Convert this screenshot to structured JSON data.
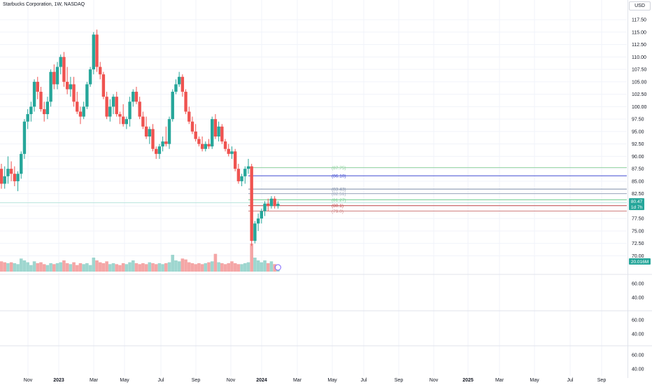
{
  "header": {
    "title": "Starbucks Corporation, 1W, NASDAQ",
    "currency": "USD"
  },
  "colors": {
    "up": "#26a69a",
    "down": "#ef5350",
    "vol_up": "#9ed6cf",
    "vol_down": "#f4a6a6",
    "grid": "#f0f3fa",
    "axis_text": "#131722"
  },
  "chart_data": [
    {
      "type": "candlestick",
      "title": "Starbucks Corporation, 1W, NASDAQ",
      "x_axis_labels": [
        "Nov",
        "2023",
        "Mar",
        "May",
        "Jul",
        "Sep",
        "Nov",
        "2024",
        "Mar",
        "May",
        "Jul",
        "Sep",
        "Nov",
        "2025",
        "Mar",
        "May",
        "Jul",
        "Sep"
      ],
      "y_axis_labels": [
        "117.50",
        "115.00",
        "112.50",
        "110.00",
        "107.50",
        "105.00",
        "102.50",
        "100.00",
        "97.50",
        "95.00",
        "92.50",
        "90.00",
        "87.50",
        "85.00",
        "82.50",
        "80.00",
        "77.50",
        "75.00",
        "72.50",
        "70.00"
      ],
      "ylim": [
        69.5,
        118.5
      ],
      "xlim_week_index": [
        0,
        184
      ],
      "last_price_label": "80.47",
      "countdown_label": "1d 7h",
      "volume_label": "20.016M",
      "series": [
        {
          "name": "price",
          "values": [
            {
              "o": 87.5,
              "h": 88.5,
              "l": 83.5,
              "c": 84.5
            },
            {
              "o": 84.5,
              "h": 88,
              "l": 83.5,
              "c": 86
            },
            {
              "o": 86,
              "h": 90,
              "l": 84.5,
              "c": 87.5
            },
            {
              "o": 87.5,
              "h": 89,
              "l": 85,
              "c": 86.5
            },
            {
              "o": 86.5,
              "h": 88,
              "l": 84,
              "c": 85
            },
            {
              "o": 85,
              "h": 87,
              "l": 83,
              "c": 86.5
            },
            {
              "o": 86.5,
              "h": 91,
              "l": 85.5,
              "c": 90.5
            },
            {
              "o": 90.5,
              "h": 97.5,
              "l": 89.5,
              "c": 97
            },
            {
              "o": 97,
              "h": 99.5,
              "l": 95.5,
              "c": 98.5
            },
            {
              "o": 98.5,
              "h": 101,
              "l": 97,
              "c": 100
            },
            {
              "o": 100,
              "h": 105.5,
              "l": 99,
              "c": 105
            },
            {
              "o": 105,
              "h": 106,
              "l": 101.5,
              "c": 103
            },
            {
              "o": 103,
              "h": 104,
              "l": 99,
              "c": 99.5
            },
            {
              "o": 99.5,
              "h": 101,
              "l": 97,
              "c": 98.5
            },
            {
              "o": 98.5,
              "h": 102,
              "l": 97.5,
              "c": 101
            },
            {
              "o": 101,
              "h": 107.5,
              "l": 100,
              "c": 107
            },
            {
              "o": 107,
              "h": 108.5,
              "l": 103.5,
              "c": 104.5
            },
            {
              "o": 104.5,
              "h": 109,
              "l": 103.5,
              "c": 108
            },
            {
              "o": 108,
              "h": 110.5,
              "l": 106.5,
              "c": 110
            },
            {
              "o": 110,
              "h": 111,
              "l": 104,
              "c": 105
            },
            {
              "o": 105,
              "h": 108,
              "l": 102.5,
              "c": 103.5
            },
            {
              "o": 103.5,
              "h": 106,
              "l": 102,
              "c": 104.5
            },
            {
              "o": 104.5,
              "h": 106,
              "l": 100,
              "c": 101
            },
            {
              "o": 101,
              "h": 103,
              "l": 98.5,
              "c": 99
            },
            {
              "o": 99,
              "h": 100,
              "l": 96.5,
              "c": 98
            },
            {
              "o": 98,
              "h": 101,
              "l": 97.5,
              "c": 100
            },
            {
              "o": 100,
              "h": 105,
              "l": 99.5,
              "c": 104.5
            },
            {
              "o": 104.5,
              "h": 108,
              "l": 104,
              "c": 107.5
            },
            {
              "o": 107.5,
              "h": 115,
              "l": 106.5,
              "c": 114.5
            },
            {
              "o": 114.5,
              "h": 115.5,
              "l": 107,
              "c": 108
            },
            {
              "o": 108,
              "h": 109,
              "l": 105.5,
              "c": 106.5
            },
            {
              "o": 106.5,
              "h": 107,
              "l": 101.5,
              "c": 102
            },
            {
              "o": 102,
              "h": 103,
              "l": 97.5,
              "c": 98
            },
            {
              "o": 98,
              "h": 101.5,
              "l": 97,
              "c": 100
            },
            {
              "o": 100,
              "h": 102.5,
              "l": 98.5,
              "c": 102
            },
            {
              "o": 102,
              "h": 103,
              "l": 98,
              "c": 98.5
            },
            {
              "o": 98.5,
              "h": 99,
              "l": 96.5,
              "c": 98
            },
            {
              "o": 98,
              "h": 100.5,
              "l": 96,
              "c": 96.5
            },
            {
              "o": 96.5,
              "h": 98,
              "l": 95.5,
              "c": 97.5
            },
            {
              "o": 97.5,
              "h": 102,
              "l": 96,
              "c": 101
            },
            {
              "o": 101,
              "h": 103.5,
              "l": 100,
              "c": 103
            },
            {
              "o": 103,
              "h": 104,
              "l": 100.5,
              "c": 101
            },
            {
              "o": 101,
              "h": 102,
              "l": 97.5,
              "c": 98
            },
            {
              "o": 98,
              "h": 99,
              "l": 95.5,
              "c": 96
            },
            {
              "o": 96,
              "h": 98,
              "l": 93.5,
              "c": 94
            },
            {
              "o": 94,
              "h": 96,
              "l": 92.5,
              "c": 95.5
            },
            {
              "o": 95.5,
              "h": 96.5,
              "l": 91,
              "c": 91.5
            },
            {
              "o": 91.5,
              "h": 92,
              "l": 89.5,
              "c": 90.5
            },
            {
              "o": 90.5,
              "h": 92.5,
              "l": 89.5,
              "c": 92
            },
            {
              "o": 92,
              "h": 94,
              "l": 91,
              "c": 93
            },
            {
              "o": 93,
              "h": 96,
              "l": 92,
              "c": 92.5
            },
            {
              "o": 92.5,
              "h": 98,
              "l": 91.5,
              "c": 97.5
            },
            {
              "o": 97.5,
              "h": 103.5,
              "l": 97,
              "c": 103
            },
            {
              "o": 103,
              "h": 105.5,
              "l": 102.5,
              "c": 104.5
            },
            {
              "o": 104.5,
              "h": 107,
              "l": 104,
              "c": 106
            },
            {
              "o": 106,
              "h": 106.5,
              "l": 102,
              "c": 103
            },
            {
              "o": 103,
              "h": 103.5,
              "l": 98.5,
              "c": 99
            },
            {
              "o": 99,
              "h": 100,
              "l": 96.5,
              "c": 97
            },
            {
              "o": 97,
              "h": 98,
              "l": 94.5,
              "c": 95
            },
            {
              "o": 95,
              "h": 96.5,
              "l": 93,
              "c": 93.5
            },
            {
              "o": 93.5,
              "h": 94,
              "l": 92,
              "c": 92.5
            },
            {
              "o": 92.5,
              "h": 94,
              "l": 91,
              "c": 91.5
            },
            {
              "o": 91.5,
              "h": 93,
              "l": 91,
              "c": 92.5
            },
            {
              "o": 92.5,
              "h": 93.5,
              "l": 91.5,
              "c": 92
            },
            {
              "o": 92,
              "h": 98,
              "l": 91.5,
              "c": 97.5
            },
            {
              "o": 97.5,
              "h": 98.5,
              "l": 93.5,
              "c": 94
            },
            {
              "o": 94,
              "h": 97,
              "l": 93,
              "c": 96
            },
            {
              "o": 96,
              "h": 96.5,
              "l": 92.5,
              "c": 93
            },
            {
              "o": 93,
              "h": 93.5,
              "l": 91,
              "c": 91.5
            },
            {
              "o": 91.5,
              "h": 92.5,
              "l": 90,
              "c": 90.5
            },
            {
              "o": 90.5,
              "h": 92,
              "l": 89.5,
              "c": 91
            },
            {
              "o": 91,
              "h": 91.5,
              "l": 87,
              "c": 87.5
            },
            {
              "o": 87.5,
              "h": 88.5,
              "l": 84.5,
              "c": 85
            },
            {
              "o": 85,
              "h": 86.5,
              "l": 84,
              "c": 86
            },
            {
              "o": 86,
              "h": 88,
              "l": 84.5,
              "c": 87.5
            },
            {
              "o": 87.5,
              "h": 89.5,
              "l": 86.5,
              "c": 88
            },
            {
              "o": 88,
              "h": 88.5,
              "l": 72,
              "c": 73
            },
            {
              "o": 73,
              "h": 77,
              "l": 72.5,
              "c": 76.5
            },
            {
              "o": 76.5,
              "h": 78.5,
              "l": 75,
              "c": 77.5
            },
            {
              "o": 77.5,
              "h": 79.5,
              "l": 76.5,
              "c": 79
            },
            {
              "o": 79,
              "h": 81,
              "l": 78,
              "c": 80.5
            },
            {
              "o": 80.5,
              "h": 81.5,
              "l": 79,
              "c": 80
            },
            {
              "o": 80,
              "h": 82,
              "l": 79.5,
              "c": 81.5
            },
            {
              "o": 81.5,
              "h": 82,
              "l": 79.5,
              "c": 80
            },
            {
              "o": 80,
              "h": 81,
              "l": 79.5,
              "c": 80.47
            }
          ]
        }
      ],
      "volume_series": [
        {
          "v": 11,
          "up": false
        },
        {
          "v": 10,
          "up": false
        },
        {
          "v": 9,
          "up": true
        },
        {
          "v": 10,
          "up": false
        },
        {
          "v": 9,
          "up": true
        },
        {
          "v": 8,
          "up": true
        },
        {
          "v": 14,
          "up": true
        },
        {
          "v": 12,
          "up": true
        },
        {
          "v": 10,
          "up": true
        },
        {
          "v": 7,
          "up": true
        },
        {
          "v": 11,
          "up": true
        },
        {
          "v": 9,
          "up": false
        },
        {
          "v": 10,
          "up": false
        },
        {
          "v": 8,
          "up": false
        },
        {
          "v": 7,
          "up": true
        },
        {
          "v": 9,
          "up": true
        },
        {
          "v": 8,
          "up": false
        },
        {
          "v": 9,
          "up": true
        },
        {
          "v": 10,
          "up": true
        },
        {
          "v": 12,
          "up": false
        },
        {
          "v": 9,
          "up": false
        },
        {
          "v": 8,
          "up": true
        },
        {
          "v": 10,
          "up": false
        },
        {
          "v": 7,
          "up": false
        },
        {
          "v": 9,
          "up": false
        },
        {
          "v": 8,
          "up": true
        },
        {
          "v": 9,
          "up": true
        },
        {
          "v": 7,
          "up": true
        },
        {
          "v": 15,
          "up": true
        },
        {
          "v": 12,
          "up": false
        },
        {
          "v": 10,
          "up": false
        },
        {
          "v": 9,
          "up": false
        },
        {
          "v": 11,
          "up": false
        },
        {
          "v": 8,
          "up": true
        },
        {
          "v": 9,
          "up": true
        },
        {
          "v": 8,
          "up": false
        },
        {
          "v": 7,
          "up": false
        },
        {
          "v": 9,
          "up": false
        },
        {
          "v": 8,
          "up": true
        },
        {
          "v": 10,
          "up": true
        },
        {
          "v": 12,
          "up": true
        },
        {
          "v": 9,
          "up": false
        },
        {
          "v": 8,
          "up": false
        },
        {
          "v": 9,
          "up": false
        },
        {
          "v": 8,
          "up": false
        },
        {
          "v": 10,
          "up": true
        },
        {
          "v": 9,
          "up": false
        },
        {
          "v": 8,
          "up": false
        },
        {
          "v": 9,
          "up": true
        },
        {
          "v": 8,
          "up": true
        },
        {
          "v": 9,
          "up": false
        },
        {
          "v": 10,
          "up": true
        },
        {
          "v": 18,
          "up": true
        },
        {
          "v": 12,
          "up": true
        },
        {
          "v": 11,
          "up": true
        },
        {
          "v": 14,
          "up": false
        },
        {
          "v": 13,
          "up": false
        },
        {
          "v": 10,
          "up": false
        },
        {
          "v": 9,
          "up": false
        },
        {
          "v": 8,
          "up": false
        },
        {
          "v": 9,
          "up": false
        },
        {
          "v": 8,
          "up": false
        },
        {
          "v": 9,
          "up": true
        },
        {
          "v": 10,
          "up": false
        },
        {
          "v": 11,
          "up": true
        },
        {
          "v": 19,
          "up": false
        },
        {
          "v": 10,
          "up": true
        },
        {
          "v": 9,
          "up": false
        },
        {
          "v": 8,
          "up": false
        },
        {
          "v": 9,
          "up": false
        },
        {
          "v": 11,
          "up": false
        },
        {
          "v": 9,
          "up": false
        },
        {
          "v": 8,
          "up": false
        },
        {
          "v": 8,
          "up": true
        },
        {
          "v": 9,
          "up": true
        },
        {
          "v": 10,
          "up": true
        },
        {
          "v": 30,
          "up": false
        },
        {
          "v": 15,
          "up": true
        },
        {
          "v": 12,
          "up": true
        },
        {
          "v": 10,
          "up": true
        },
        {
          "v": 12,
          "up": true
        },
        {
          "v": 9,
          "up": false
        },
        {
          "v": 11,
          "up": true
        },
        {
          "v": 8,
          "up": false
        },
        {
          "v": 3,
          "up": true
        }
      ],
      "price_levels": [
        {
          "label": "(87.75)",
          "value": 87.75,
          "color": "#8fd19e"
        },
        {
          "label": "(86.10)",
          "value": 86.1,
          "color": "#3f4ad1"
        },
        {
          "label": "(83.43)",
          "value": 83.43,
          "color": "#7d8ca8"
        },
        {
          "label": "(82.51)",
          "value": 82.51,
          "color": "#9aa6bd"
        },
        {
          "label": "(81.27)",
          "value": 81.27,
          "color": "#6fcf8f"
        },
        {
          "label": "(80.1)",
          "value": 80.1,
          "color": "#c44848"
        },
        {
          "label": "(79.0)",
          "value": 79.0,
          "color": "#d08080"
        }
      ],
      "sub_panes": [
        {
          "y_axis_labels": [
            "60.00",
            "40.00"
          ]
        },
        {
          "y_axis_labels": [
            "60.00",
            "40.00"
          ]
        },
        {
          "y_axis_labels": [
            "60.00",
            "40.00"
          ]
        }
      ]
    }
  ]
}
